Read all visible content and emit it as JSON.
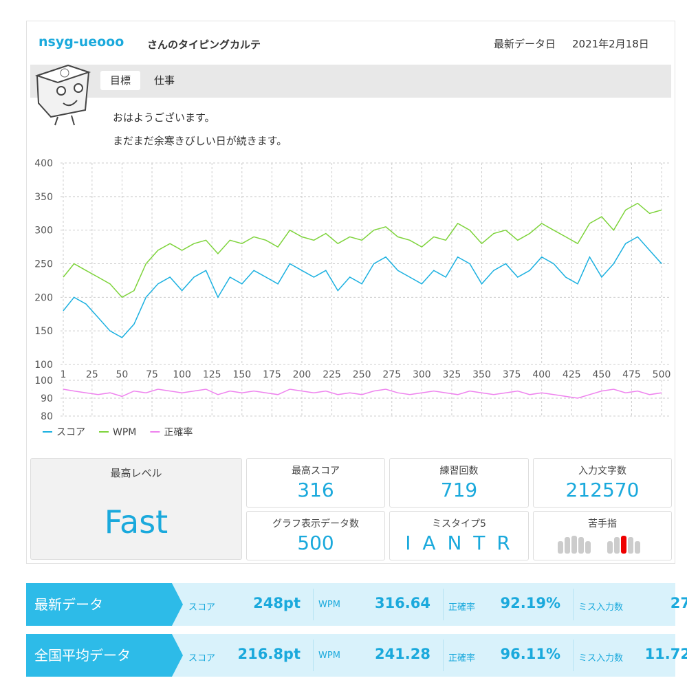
{
  "header": {
    "user": "nsyg-ueooo",
    "title_suffix": "さんのタイピングカルテ",
    "date_label": "最新データ日",
    "date": "2021年2月18日"
  },
  "goal": {
    "label": "目標",
    "text": "仕事"
  },
  "message": [
    "おはようございます。",
    "まだまだ余寒きびしい日が続きます。"
  ],
  "chart_data": [
    {
      "type": "line",
      "xlim": [
        1,
        508
      ],
      "ylim": [
        100,
        400
      ],
      "yticks": [
        100,
        150,
        200,
        250,
        300,
        350,
        400
      ],
      "xticks": [
        1,
        25,
        50,
        75,
        100,
        125,
        150,
        175,
        200,
        225,
        250,
        275,
        300,
        325,
        350,
        375,
        400,
        425,
        450,
        475,
        500
      ],
      "grid": true,
      "x": [
        1,
        10,
        20,
        30,
        40,
        50,
        60,
        70,
        80,
        90,
        100,
        110,
        120,
        130,
        140,
        150,
        160,
        170,
        180,
        190,
        200,
        210,
        220,
        230,
        240,
        250,
        260,
        270,
        280,
        290,
        300,
        310,
        320,
        330,
        340,
        350,
        360,
        370,
        380,
        390,
        400,
        410,
        420,
        430,
        440,
        450,
        460,
        470,
        480,
        490,
        500
      ],
      "series": [
        {
          "name": "スコア",
          "color": "#1ab0e0",
          "values": [
            180,
            200,
            190,
            170,
            150,
            140,
            160,
            200,
            220,
            230,
            210,
            230,
            240,
            200,
            230,
            220,
            240,
            230,
            220,
            250,
            240,
            230,
            240,
            210,
            230,
            220,
            250,
            260,
            240,
            230,
            220,
            240,
            230,
            260,
            250,
            220,
            240,
            250,
            230,
            240,
            260,
            250,
            230,
            220,
            260,
            230,
            250,
            280,
            290,
            270,
            250
          ]
        },
        {
          "name": "WPM",
          "color": "#7dd33a",
          "values": [
            230,
            250,
            240,
            230,
            220,
            200,
            210,
            250,
            270,
            280,
            270,
            280,
            285,
            265,
            285,
            280,
            290,
            285,
            275,
            300,
            290,
            285,
            295,
            280,
            290,
            285,
            300,
            305,
            290,
            285,
            275,
            290,
            285,
            310,
            300,
            280,
            295,
            300,
            285,
            295,
            310,
            300,
            290,
            280,
            310,
            320,
            300,
            330,
            340,
            325,
            330
          ]
        }
      ]
    },
    {
      "type": "line",
      "xlim": [
        1,
        508
      ],
      "ylim": [
        80,
        100
      ],
      "yticks": [
        80,
        90,
        100
      ],
      "grid": true,
      "x": [
        1,
        10,
        20,
        30,
        40,
        50,
        60,
        70,
        80,
        90,
        100,
        110,
        120,
        130,
        140,
        150,
        160,
        170,
        180,
        190,
        200,
        210,
        220,
        230,
        240,
        250,
        260,
        270,
        280,
        290,
        300,
        310,
        320,
        330,
        340,
        350,
        360,
        370,
        380,
        390,
        400,
        410,
        420,
        430,
        440,
        450,
        460,
        470,
        480,
        490,
        500
      ],
      "series": [
        {
          "name": "正確率",
          "color": "#ee82ee",
          "values": [
            95,
            94,
            93,
            92,
            93,
            91,
            94,
            93,
            95,
            94,
            93,
            94,
            95,
            92,
            94,
            93,
            94,
            93,
            92,
            95,
            94,
            93,
            94,
            92,
            93,
            92,
            94,
            95,
            93,
            92,
            93,
            94,
            93,
            92,
            94,
            93,
            92,
            93,
            94,
            92,
            93,
            92,
            91,
            90,
            92,
            94,
            95,
            93,
            94,
            92,
            93
          ]
        }
      ]
    }
  ],
  "stats": {
    "level": {
      "label": "最高レベル",
      "value": "Fast"
    },
    "best_score": {
      "label": "最高スコア",
      "value": "316"
    },
    "practice": {
      "label": "練習回数",
      "value": "719"
    },
    "chars": {
      "label": "入力文字数",
      "value": "212570"
    },
    "graph_count": {
      "label": "グラフ表示データ数",
      "value": "500"
    },
    "miss": {
      "label": "ミスタイプ5",
      "value": "I A N T R"
    },
    "weak": {
      "label": "苦手指"
    }
  },
  "summary": [
    {
      "title": "最新データ",
      "items": [
        {
          "label": "スコア",
          "value": "248pt"
        },
        {
          "label": "WPM",
          "value": "316.64"
        },
        {
          "label": "正確率",
          "value": "92.19%"
        },
        {
          "label": "ミス入力数",
          "value": "27"
        }
      ]
    },
    {
      "title": "全国平均データ",
      "items": [
        {
          "label": "スコア",
          "value": "216.8pt"
        },
        {
          "label": "WPM",
          "value": "241.28"
        },
        {
          "label": "正確率",
          "value": "96.11%"
        },
        {
          "label": "ミス入力数",
          "value": "11.72"
        }
      ]
    }
  ]
}
